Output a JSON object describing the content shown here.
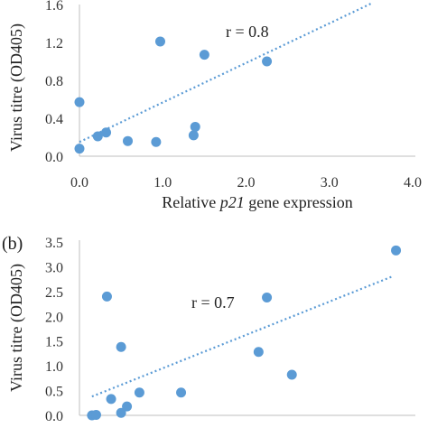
{
  "chart_data": [
    {
      "type": "scatter",
      "panel_label": "",
      "xlabel_parts": [
        "Relative ",
        "p21",
        " gene expression"
      ],
      "ylabel": "Virus titre (OD405)",
      "annotation": "r = 0.8",
      "xlim": [
        0,
        4.0
      ],
      "ylim": [
        0,
        1.6
      ],
      "x_ticks": [
        "0.0",
        "1.0",
        "2.0",
        "3.0",
        "4.0"
      ],
      "y_ticks": [
        "0.0",
        "0.4",
        "0.8",
        "1.2",
        "1.6"
      ],
      "trendline": {
        "style": "dotted",
        "x": [
          0,
          3.5
        ],
        "y": [
          0.15,
          1.62
        ]
      },
      "color": "#5b9bd5",
      "points": [
        {
          "x": 0.0,
          "y": 0.57
        },
        {
          "x": 0.0,
          "y": 0.08
        },
        {
          "x": 0.22,
          "y": 0.21
        },
        {
          "x": 0.32,
          "y": 0.25
        },
        {
          "x": 0.58,
          "y": 0.16
        },
        {
          "x": 0.92,
          "y": 0.15
        },
        {
          "x": 0.97,
          "y": 1.21
        },
        {
          "x": 1.37,
          "y": 0.22
        },
        {
          "x": 1.39,
          "y": 0.31
        },
        {
          "x": 1.5,
          "y": 1.07
        },
        {
          "x": 2.25,
          "y": 1.0
        }
      ]
    },
    {
      "type": "scatter",
      "panel_label": "(b)",
      "xlabel": "",
      "ylabel": "Virus titre (OD405)",
      "annotation": "r = 0.7",
      "xlim": [
        0,
        4.0
      ],
      "ylim": [
        0,
        3.5
      ],
      "y_ticks": [
        "0.0",
        "0.5",
        "1.0",
        "1.5",
        "2.0",
        "2.5",
        "3.0",
        "3.5"
      ],
      "trendline": {
        "style": "dotted",
        "x": [
          0.15,
          3.75
        ],
        "y": [
          0.38,
          2.8
        ]
      },
      "color": "#5b9bd5",
      "points": [
        {
          "x": 0.15,
          "y": 0.0
        },
        {
          "x": 0.2,
          "y": 0.01
        },
        {
          "x": 0.33,
          "y": 2.4
        },
        {
          "x": 0.38,
          "y": 0.33
        },
        {
          "x": 0.5,
          "y": 0.05
        },
        {
          "x": 0.5,
          "y": 1.38
        },
        {
          "x": 0.57,
          "y": 0.18
        },
        {
          "x": 0.72,
          "y": 0.46
        },
        {
          "x": 1.22,
          "y": 0.46
        },
        {
          "x": 2.15,
          "y": 1.28
        },
        {
          "x": 2.25,
          "y": 2.38
        },
        {
          "x": 2.55,
          "y": 0.82
        },
        {
          "x": 3.8,
          "y": 3.33
        }
      ]
    }
  ]
}
